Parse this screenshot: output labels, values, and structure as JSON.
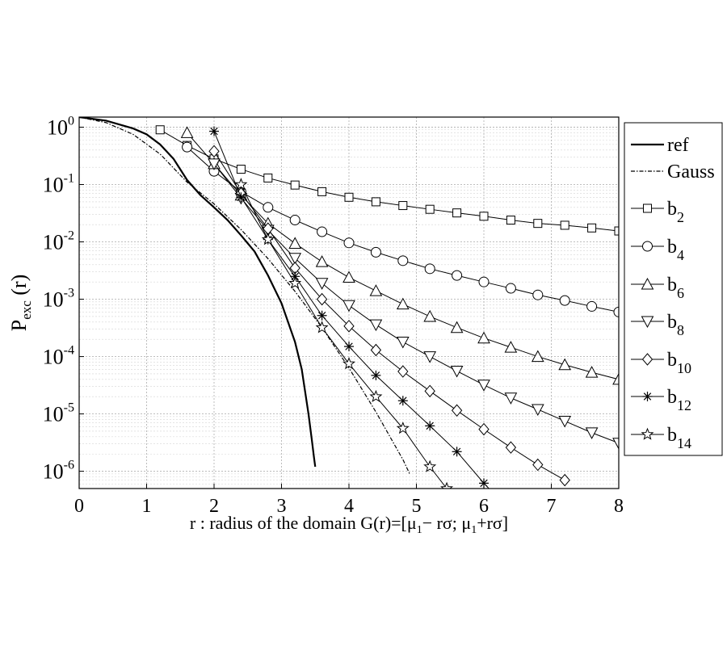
{
  "chart_data": {
    "type": "line",
    "title": "",
    "xlabel": "r : radius of the domain  G(r)=[μ",
    "xlabel_sub1": "1",
    "xlabel_mid": "− rσ; μ",
    "xlabel_sub2": "1",
    "xlabel_end": "+rσ]",
    "ylabel_main": "P",
    "ylabel_sub": "exc",
    "ylabel_end": " (r)",
    "xlim": [
      0,
      8
    ],
    "ylim": [
      5e-07,
      1.5
    ],
    "y_scale": "log",
    "grid": true,
    "legend_position": "right",
    "x_ticks": [
      "0",
      "1",
      "2",
      "3",
      "4",
      "5",
      "6",
      "7",
      "8"
    ],
    "y_tick_base": "10",
    "y_ticks": [
      {
        "exp": "0",
        "value": 1
      },
      {
        "exp": "-1",
        "value": 0.1
      },
      {
        "exp": "-2",
        "value": 0.01
      },
      {
        "exp": "-3",
        "value": 0.001
      },
      {
        "exp": "-4",
        "value": 0.0001
      },
      {
        "exp": "-5",
        "value": 1e-05
      },
      {
        "exp": "-6",
        "value": 1e-06
      }
    ],
    "series": [
      {
        "name": "ref",
        "sub": "",
        "marker": "none",
        "style": "solid-thick",
        "x": [
          0,
          0.4,
          0.8,
          1.0,
          1.2,
          1.4,
          1.6,
          1.8,
          2.0,
          2.2,
          2.4,
          2.6,
          2.8,
          3.0,
          3.2,
          3.3,
          3.4,
          3.45,
          3.48,
          3.5
        ],
        "y": [
          1.5,
          1.3,
          0.95,
          0.75,
          0.5,
          0.28,
          0.12,
          0.065,
          0.04,
          0.024,
          0.013,
          0.0068,
          0.0026,
          0.00085,
          0.00018,
          6e-05,
          1e-05,
          3.5e-06,
          1.8e-06,
          1.2e-06
        ]
      },
      {
        "name": "Gauss",
        "sub": "",
        "marker": "none",
        "style": "dashdot",
        "x": [
          0,
          0.4,
          0.8,
          1.2,
          1.6,
          2.0,
          2.4,
          2.8,
          3.2,
          3.6,
          4.0,
          4.4,
          4.8,
          4.9
        ],
        "y": [
          1.5,
          1.2,
          0.75,
          0.34,
          0.11,
          0.046,
          0.0164,
          0.0051,
          0.00137,
          0.00032,
          6.34e-05,
          1.08e-05,
          1.6e-06,
          9e-07
        ]
      },
      {
        "name": "b",
        "sub": "2",
        "marker": "square",
        "x": [
          1.2,
          1.6,
          2.0,
          2.4,
          2.8,
          3.2,
          3.6,
          4.0,
          4.4,
          4.8,
          5.2,
          5.6,
          6.0,
          6.4,
          6.8,
          7.2,
          7.6,
          8.0
        ],
        "y": [
          0.9,
          0.48,
          0.28,
          0.185,
          0.13,
          0.098,
          0.075,
          0.06,
          0.05,
          0.043,
          0.037,
          0.032,
          0.028,
          0.024,
          0.021,
          0.0195,
          0.0175,
          0.0155
        ]
      },
      {
        "name": "b",
        "sub": "4",
        "marker": "circle",
        "x": [
          1.6,
          2.0,
          2.4,
          2.8,
          3.2,
          3.6,
          4.0,
          4.4,
          4.8,
          5.2,
          5.6,
          6.0,
          6.4,
          6.8,
          7.2,
          7.6,
          8.0
        ],
        "y": [
          0.45,
          0.17,
          0.075,
          0.04,
          0.024,
          0.015,
          0.0096,
          0.0066,
          0.0047,
          0.0034,
          0.0026,
          0.002,
          0.00155,
          0.00119,
          0.00095,
          0.00075,
          0.0006
        ]
      },
      {
        "name": "b",
        "sub": "6",
        "marker": "triangle-up",
        "x": [
          1.6,
          2.0,
          2.4,
          2.8,
          3.2,
          3.6,
          4.0,
          4.4,
          4.8,
          5.2,
          5.6,
          6.0,
          6.4,
          6.8,
          7.2,
          7.6,
          8.0
        ],
        "y": [
          0.8,
          0.23,
          0.065,
          0.021,
          0.0094,
          0.0045,
          0.0024,
          0.0014,
          0.00082,
          0.0005,
          0.00032,
          0.00021,
          0.000145,
          0.0001,
          7.2e-05,
          5.3e-05,
          4e-05
        ]
      },
      {
        "name": "b",
        "sub": "8",
        "marker": "triangle-down",
        "x": [
          2.0,
          2.4,
          2.8,
          3.2,
          3.6,
          4.0,
          4.4,
          4.8,
          5.2,
          5.6,
          6.0,
          6.4,
          6.8,
          7.2,
          7.6,
          8.0
        ],
        "y": [
          0.23,
          0.058,
          0.016,
          0.0052,
          0.0019,
          0.00078,
          0.00036,
          0.00018,
          0.0001,
          5.6e-05,
          3.2e-05,
          1.9e-05,
          1.2e-05,
          7.5e-06,
          4.7e-06,
          3.1e-06
        ]
      },
      {
        "name": "b",
        "sub": "10",
        "marker": "diamond",
        "x": [
          2.0,
          2.4,
          2.8,
          3.2,
          3.6,
          4.0,
          4.4,
          4.8,
          5.2,
          5.6,
          6.0,
          6.4,
          6.8,
          7.2
        ],
        "y": [
          0.38,
          0.07,
          0.017,
          0.0035,
          0.001,
          0.00034,
          0.00013,
          5.5e-05,
          2.5e-05,
          1.15e-05,
          5.4e-06,
          2.6e-06,
          1.3e-06,
          7e-07
        ]
      },
      {
        "name": "b",
        "sub": "12",
        "marker": "asterisk",
        "x": [
          2.0,
          2.4,
          2.8,
          3.2,
          3.6,
          4.0,
          4.4,
          4.8,
          5.2,
          5.6,
          6.0,
          6.2
        ],
        "y": [
          0.85,
          0.06,
          0.011,
          0.0025,
          0.00052,
          0.00015,
          4.7e-05,
          1.7e-05,
          6.2e-06,
          2.2e-06,
          6.2e-07,
          3.5e-07
        ]
      },
      {
        "name": "b",
        "sub": "14",
        "marker": "star",
        "x": [
          2.4,
          2.8,
          3.2,
          3.6,
          4.0,
          4.4,
          4.8,
          5.2,
          5.45
        ],
        "y": [
          0.1,
          0.011,
          0.0019,
          0.00032,
          7.5e-05,
          2e-05,
          5.6e-06,
          1.2e-06,
          5e-07
        ]
      }
    ]
  }
}
